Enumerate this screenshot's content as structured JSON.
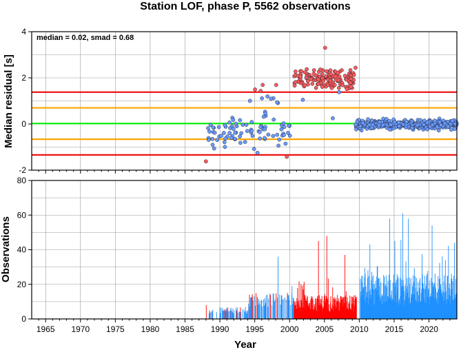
{
  "title": "Station LOF, phase P, 5562 observations",
  "chart_data": [
    {
      "type": "scatter",
      "ylabel": "Median residual [s]",
      "ylim": [
        -2,
        4
      ],
      "xlim": [
        1963,
        2024
      ],
      "yticks": [
        -2,
        0,
        2,
        4
      ],
      "annotation": "median = 0.02, smad = 0.68",
      "grid": true,
      "reference_lines": [
        {
          "y": 0.02,
          "color": "#00ee00"
        },
        {
          "y": 0.7,
          "color": "#ffa500"
        },
        {
          "y": -0.66,
          "color": "#ffa500"
        },
        {
          "y": 1.38,
          "color": "#ee1111"
        },
        {
          "y": -1.34,
          "color": "#ee1111"
        }
      ],
      "colors": {
        "inlier": "#6a9cff",
        "outlier": "#ff5a5a"
      },
      "note": "points outside the red lines are drawn as outliers"
    },
    {
      "type": "bar",
      "xlabel": "Year",
      "ylabel": "Observations",
      "ylim": [
        0,
        80
      ],
      "xlim": [
        1963,
        2024
      ],
      "yticks": [
        0,
        20,
        40,
        60,
        80
      ],
      "xticks": [
        1965,
        1970,
        1975,
        1980,
        1985,
        1990,
        1995,
        2000,
        2005,
        2010,
        2015,
        2020
      ],
      "grid": true,
      "colors": {
        "normal": "#1e90ff",
        "outlier": "#ff0000"
      },
      "red_period": [
        2000.6,
        2009.6
      ],
      "data_start": 1988,
      "peaks": [
        {
          "x": 1988.0,
          "y": 8,
          "outlier": true
        },
        {
          "x": 1994.2,
          "y": 14,
          "outlier": true
        },
        {
          "x": 1996.4,
          "y": 12,
          "outlier": false
        },
        {
          "x": 1998.3,
          "y": 36,
          "outlier": false
        },
        {
          "x": 2000.3,
          "y": 19,
          "outlier": false
        },
        {
          "x": 2004.1,
          "y": 45,
          "outlier": true
        },
        {
          "x": 2005.3,
          "y": 48,
          "outlier": true
        },
        {
          "x": 2007.9,
          "y": 37,
          "outlier": true
        },
        {
          "x": 2014.3,
          "y": 58,
          "outlier": false
        },
        {
          "x": 2016.2,
          "y": 61,
          "outlier": false
        },
        {
          "x": 2017.0,
          "y": 58,
          "outlier": false
        },
        {
          "x": 2020.4,
          "y": 54,
          "outlier": false
        },
        {
          "x": 2023.6,
          "y": 44,
          "outlier": false
        }
      ]
    }
  ]
}
